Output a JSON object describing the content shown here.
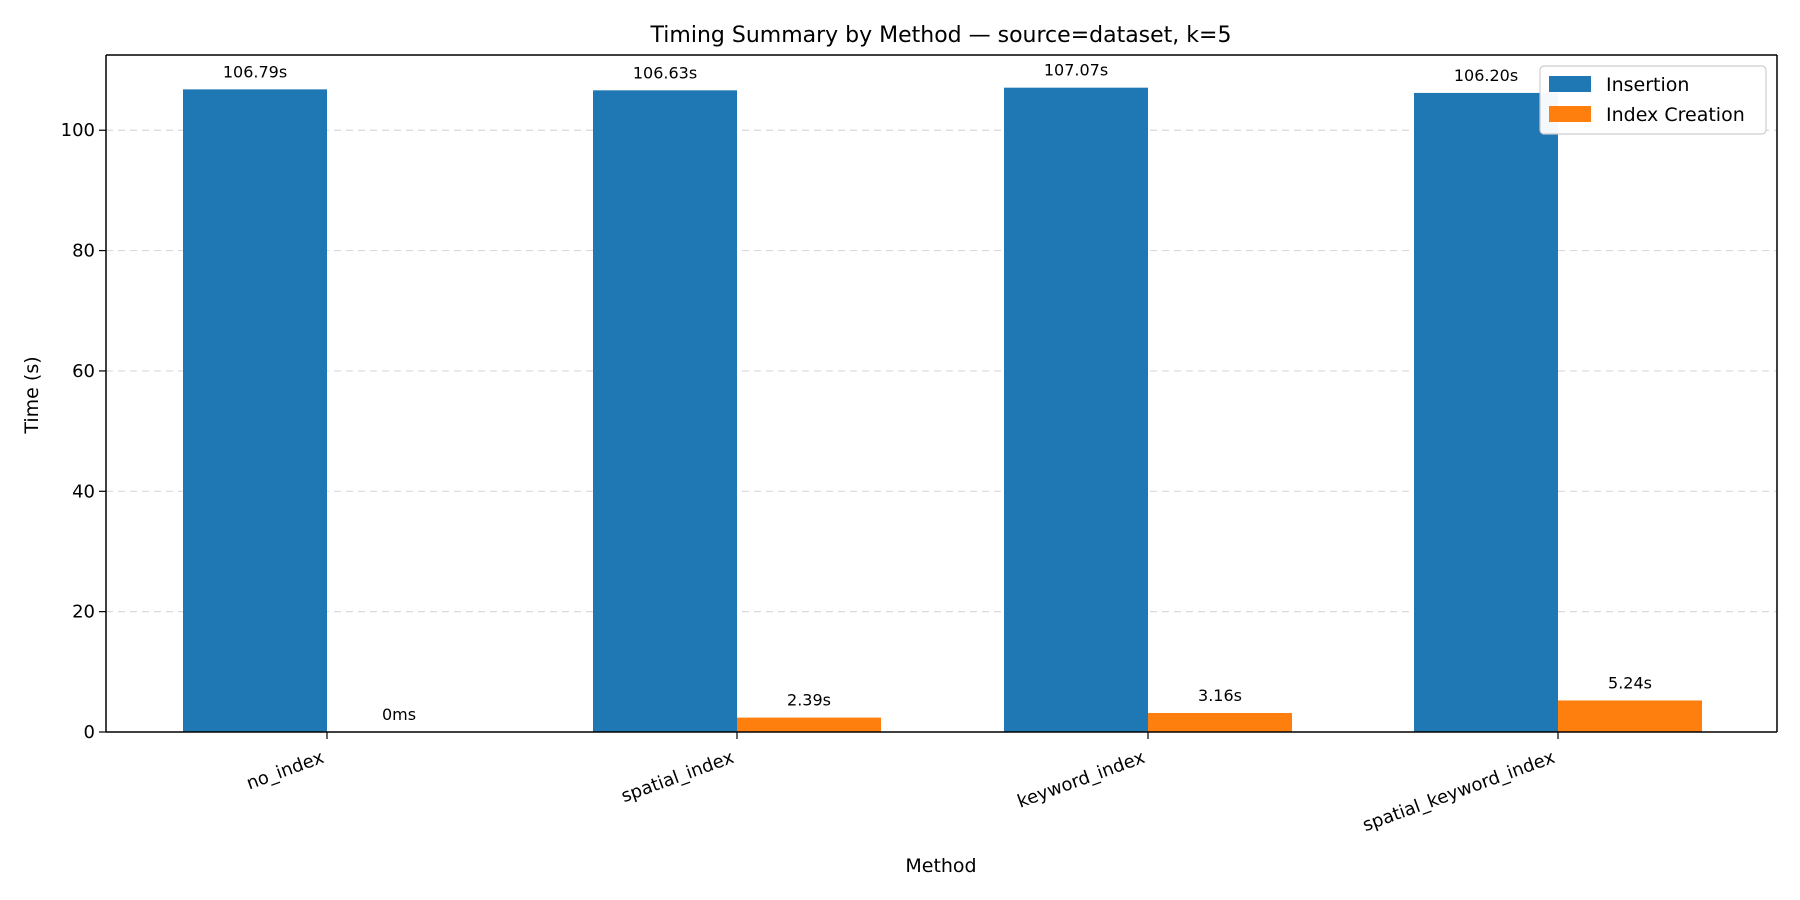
{
  "chart_data": {
    "type": "bar",
    "title": "Timing Summary by Method — source=dataset, k=5",
    "xlabel": "Method",
    "ylabel": "Time (s)",
    "categories": [
      "no_index",
      "spatial_index",
      "keyword_index",
      "spatial_keyword_index"
    ],
    "series": [
      {
        "name": "Insertion",
        "color": "#1f77b4",
        "values": [
          106.79,
          106.63,
          107.07,
          106.2
        ],
        "labels": [
          "106.79s",
          "106.63s",
          "107.07s",
          "106.20s"
        ]
      },
      {
        "name": "Index Creation",
        "color": "#ff7f0e",
        "values": [
          0,
          2.39,
          3.16,
          5.24
        ],
        "labels": [
          "0ms",
          "2.39s",
          "3.16s",
          "5.24s"
        ]
      }
    ],
    "ylim": [
      0,
      112.5
    ],
    "yticks": [
      0,
      20,
      40,
      60,
      80,
      100
    ],
    "grid": "y-dashed",
    "legend": "top-right"
  }
}
